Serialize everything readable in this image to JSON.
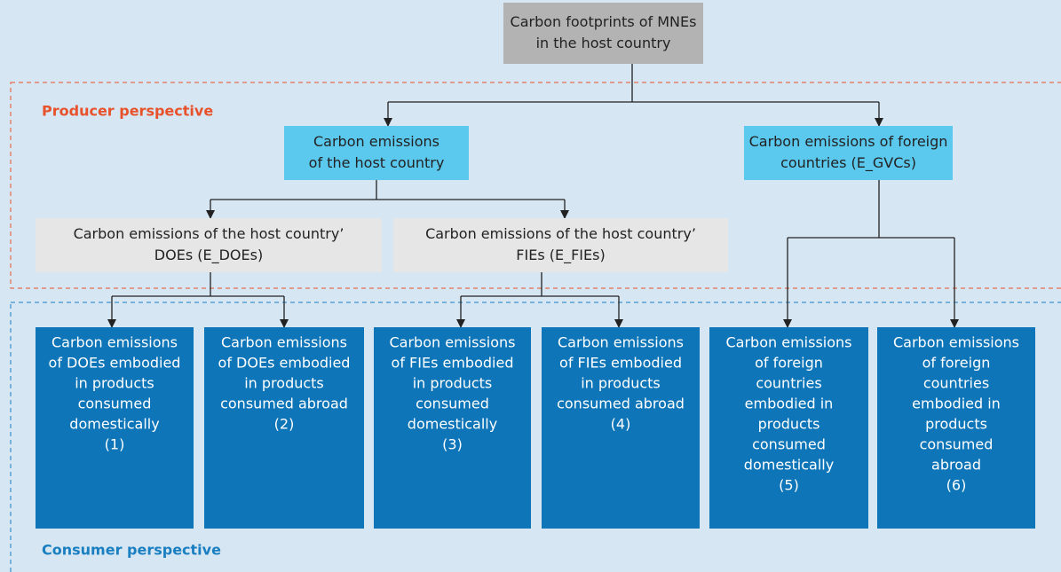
{
  "root": {
    "lines": [
      "Carbon footprints of MNEs",
      "in the host country"
    ]
  },
  "producer_label": "Producer perspective",
  "consumer_label": "Consumer perspective",
  "host": {
    "lines": [
      "Carbon emissions",
      "of the host country"
    ]
  },
  "foreign": {
    "lines": [
      "Carbon emissions of foreign",
      "countries (E_GVCs)"
    ]
  },
  "does": {
    "lines": [
      "Carbon emissions of the host country’",
      "DOEs (E_DOEs)"
    ]
  },
  "fies": {
    "lines": [
      "Carbon emissions of the host country’",
      "FIEs (E_FIEs)"
    ]
  },
  "outcomes": [
    {
      "lines": [
        "Carbon emissions",
        "of DOEs embodied",
        "in products",
        "consumed",
        "domestically",
        "(1)"
      ]
    },
    {
      "lines": [
        "Carbon emissions",
        "of DOEs embodied",
        "in products",
        "consumed abroad",
        "(2)"
      ]
    },
    {
      "lines": [
        "Carbon emissions",
        "of FIEs embodied",
        "in products",
        "consumed",
        "domestically",
        "(3)"
      ]
    },
    {
      "lines": [
        "Carbon emissions",
        "of FIEs embodied",
        "in products",
        "consumed abroad",
        "(4)"
      ]
    },
    {
      "lines": [
        "Carbon emissions",
        "of foreign",
        "countries",
        "embodied in",
        "products",
        "consumed",
        "domestically",
        "(5)"
      ]
    },
    {
      "lines": [
        "Carbon emissions",
        "of foreign",
        "countries",
        "embodied in",
        "products",
        "consumed",
        "abroad",
        "(6)"
      ]
    }
  ]
}
